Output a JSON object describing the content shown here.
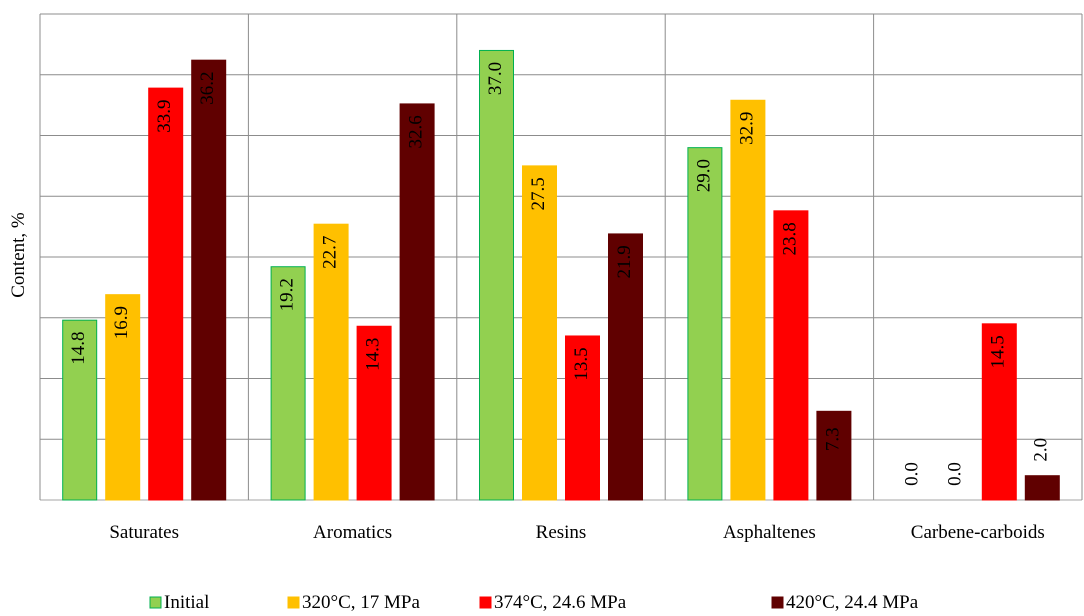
{
  "chart_data": {
    "type": "bar",
    "title": "",
    "xlabel": "",
    "ylabel": "Content, %",
    "ylim": [
      0,
      40
    ],
    "grid": true,
    "legend_position": "bottom",
    "categories": [
      "Saturates",
      "Aromatics",
      "Resins",
      "Asphaltenes",
      "Carbene-carboids"
    ],
    "series": [
      {
        "name": "Initial",
        "color": "#92d050",
        "edge": "#00b050",
        "values": [
          14.8,
          19.2,
          37.0,
          29.0,
          0.0
        ]
      },
      {
        "name": "320°C, 17 MPa",
        "color": "#ffc000",
        "edge": "#ffc000",
        "values": [
          16.9,
          22.7,
          27.5,
          32.9,
          0.0
        ]
      },
      {
        "name": "374°C, 24.6 MPa",
        "color": "#ff0000",
        "edge": "#ff0000",
        "values": [
          33.9,
          14.3,
          13.5,
          23.8,
          14.5
        ]
      },
      {
        "name": "420°C, 24.4 MPa",
        "color": "#600000",
        "edge": "#600000",
        "values": [
          36.2,
          32.6,
          21.9,
          7.3,
          2.0
        ]
      }
    ]
  }
}
